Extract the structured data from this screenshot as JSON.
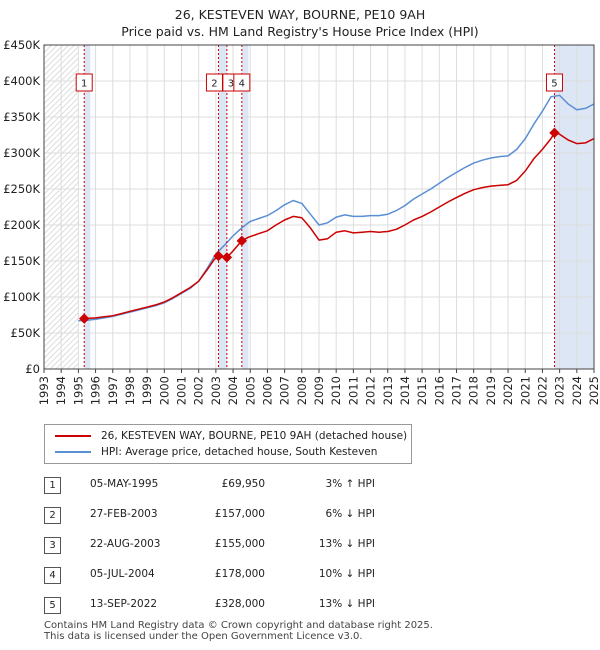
{
  "title": {
    "line1": "26, KESTEVEN WAY, BOURNE, PE10 9AH",
    "line2": "Price paid vs. HM Land Registry's House Price Index (HPI)"
  },
  "colors": {
    "red": "#cc0000",
    "blue": "#5b8fd4",
    "shade": "#dde6f4",
    "grid": "#dddddd"
  },
  "chart_data": {
    "type": "line",
    "title": "26, KESTEVEN WAY, BOURNE, PE10 9AH — Price paid vs. HM Land Registry's House Price Index (HPI)",
    "xlabel": "",
    "ylabel": "",
    "xlim": [
      1993,
      2025
    ],
    "ylim": [
      0,
      450000
    ],
    "yticks": [
      0,
      50000,
      100000,
      150000,
      200000,
      250000,
      300000,
      350000,
      400000,
      450000
    ],
    "ytick_labels": [
      "£0",
      "£50K",
      "£100K",
      "£150K",
      "£200K",
      "£250K",
      "£300K",
      "£350K",
      "£400K",
      "£450K"
    ],
    "xticks": [
      1993,
      1994,
      1995,
      1996,
      1997,
      1998,
      1999,
      2000,
      2001,
      2002,
      2003,
      2004,
      2005,
      2006,
      2007,
      2008,
      2009,
      2010,
      2011,
      2012,
      2013,
      2014,
      2015,
      2016,
      2017,
      2018,
      2019,
      2020,
      2021,
      2022,
      2023,
      2024,
      2025
    ],
    "hatched_ranges": [
      [
        1993,
        1995.0
      ],
      [
        2024.8,
        2025
      ]
    ],
    "shaded_ranges": [
      [
        1995.34,
        1995.7
      ],
      [
        2003.15,
        2003.64
      ],
      [
        2004.51,
        2004.9
      ],
      [
        2022.7,
        2025
      ]
    ],
    "series": [
      {
        "name": "26, KESTEVEN WAY, BOURNE, PE10 9AH (detached house)",
        "color": "#cc0000",
        "points": [
          [
            1995.34,
            69950
          ],
          [
            1995.6,
            70500
          ],
          [
            1996.0,
            71000
          ],
          [
            1996.5,
            72500
          ],
          [
            1997.0,
            74000
          ],
          [
            1997.5,
            77000
          ],
          [
            1998.0,
            80000
          ],
          [
            1998.5,
            83000
          ],
          [
            1999.0,
            86000
          ],
          [
            1999.5,
            89000
          ],
          [
            2000.0,
            93000
          ],
          [
            2000.5,
            99000
          ],
          [
            2001.0,
            106000
          ],
          [
            2001.5,
            113000
          ],
          [
            2002.0,
            122000
          ],
          [
            2002.5,
            138000
          ],
          [
            2002.9,
            152000
          ],
          [
            2003.15,
            157000
          ],
          [
            2003.4,
            156000
          ],
          [
            2003.64,
            155000
          ],
          [
            2004.0,
            164000
          ],
          [
            2004.51,
            178000
          ],
          [
            2004.9,
            183000
          ],
          [
            2005.5,
            188000
          ],
          [
            2006.0,
            192000
          ],
          [
            2006.5,
            200000
          ],
          [
            2007.0,
            207000
          ],
          [
            2007.5,
            212000
          ],
          [
            2008.0,
            210000
          ],
          [
            2008.5,
            196000
          ],
          [
            2009.0,
            179000
          ],
          [
            2009.5,
            181000
          ],
          [
            2010.0,
            190000
          ],
          [
            2010.5,
            192000
          ],
          [
            2011.0,
            189000
          ],
          [
            2011.5,
            190000
          ],
          [
            2012.0,
            191000
          ],
          [
            2012.5,
            190000
          ],
          [
            2013.0,
            191000
          ],
          [
            2013.5,
            194000
          ],
          [
            2014.0,
            200000
          ],
          [
            2014.5,
            207000
          ],
          [
            2015.0,
            212000
          ],
          [
            2015.5,
            218000
          ],
          [
            2016.0,
            225000
          ],
          [
            2016.5,
            232000
          ],
          [
            2017.0,
            238000
          ],
          [
            2017.5,
            244000
          ],
          [
            2018.0,
            249000
          ],
          [
            2018.5,
            252000
          ],
          [
            2019.0,
            254000
          ],
          [
            2019.5,
            255000
          ],
          [
            2020.0,
            256000
          ],
          [
            2020.5,
            262000
          ],
          [
            2021.0,
            275000
          ],
          [
            2021.5,
            292000
          ],
          [
            2022.0,
            305000
          ],
          [
            2022.5,
            320000
          ],
          [
            2022.7,
            328000
          ],
          [
            2023.0,
            326000
          ],
          [
            2023.5,
            318000
          ],
          [
            2024.0,
            313000
          ],
          [
            2024.5,
            314000
          ],
          [
            2025.0,
            320000
          ]
        ]
      },
      {
        "name": "HPI: Average price, detached house, South Kesteven",
        "color": "#5b8fd4",
        "points": [
          [
            1995.0,
            67000
          ],
          [
            1995.5,
            67800
          ],
          [
            1996.0,
            69000
          ],
          [
            1996.5,
            71000
          ],
          [
            1997.0,
            73000
          ],
          [
            1997.5,
            76000
          ],
          [
            1998.0,
            79000
          ],
          [
            1998.5,
            82000
          ],
          [
            1999.0,
            85000
          ],
          [
            1999.5,
            88000
          ],
          [
            2000.0,
            92000
          ],
          [
            2000.5,
            98000
          ],
          [
            2001.0,
            105000
          ],
          [
            2001.5,
            112000
          ],
          [
            2002.0,
            122000
          ],
          [
            2002.5,
            140000
          ],
          [
            2003.0,
            160000
          ],
          [
            2003.5,
            172000
          ],
          [
            2004.0,
            185000
          ],
          [
            2004.5,
            196000
          ],
          [
            2005.0,
            205000
          ],
          [
            2005.5,
            209000
          ],
          [
            2006.0,
            213000
          ],
          [
            2006.5,
            220000
          ],
          [
            2007.0,
            228000
          ],
          [
            2007.5,
            234000
          ],
          [
            2008.0,
            230000
          ],
          [
            2008.5,
            215000
          ],
          [
            2009.0,
            200000
          ],
          [
            2009.5,
            203000
          ],
          [
            2010.0,
            211000
          ],
          [
            2010.5,
            214000
          ],
          [
            2011.0,
            212000
          ],
          [
            2011.5,
            212000
          ],
          [
            2012.0,
            213000
          ],
          [
            2012.5,
            213000
          ],
          [
            2013.0,
            215000
          ],
          [
            2013.5,
            220000
          ],
          [
            2014.0,
            227000
          ],
          [
            2014.5,
            236000
          ],
          [
            2015.0,
            243000
          ],
          [
            2015.5,
            250000
          ],
          [
            2016.0,
            258000
          ],
          [
            2016.5,
            266000
          ],
          [
            2017.0,
            273000
          ],
          [
            2017.5,
            280000
          ],
          [
            2018.0,
            286000
          ],
          [
            2018.5,
            290000
          ],
          [
            2019.0,
            293000
          ],
          [
            2019.5,
            295000
          ],
          [
            2020.0,
            296000
          ],
          [
            2020.5,
            305000
          ],
          [
            2021.0,
            320000
          ],
          [
            2021.5,
            340000
          ],
          [
            2022.0,
            358000
          ],
          [
            2022.5,
            378000
          ],
          [
            2023.0,
            380000
          ],
          [
            2023.5,
            368000
          ],
          [
            2024.0,
            360000
          ],
          [
            2024.5,
            362000
          ],
          [
            2025.0,
            368000
          ]
        ]
      }
    ],
    "sales": [
      {
        "id": "1",
        "x": 1995.34,
        "y": 69950
      },
      {
        "id": "2",
        "x": 2003.15,
        "y": 157000
      },
      {
        "id": "3",
        "x": 2003.64,
        "y": 155000
      },
      {
        "id": "4",
        "x": 2004.51,
        "y": 178000
      },
      {
        "id": "5",
        "x": 2022.7,
        "y": 328000
      }
    ]
  },
  "legend": {
    "red_label": "26, KESTEVEN WAY, BOURNE, PE10 9AH (detached house)",
    "blue_label": "HPI: Average price, detached house, South Kesteven"
  },
  "table": {
    "rows": [
      {
        "num": "1",
        "date": "05-MAY-1995",
        "price": "£69,950",
        "hpi": "3% ↑ HPI"
      },
      {
        "num": "2",
        "date": "27-FEB-2003",
        "price": "£157,000",
        "hpi": "6% ↓ HPI"
      },
      {
        "num": "3",
        "date": "22-AUG-2003",
        "price": "£155,000",
        "hpi": "13% ↓ HPI"
      },
      {
        "num": "4",
        "date": "05-JUL-2004",
        "price": "£178,000",
        "hpi": "10% ↓ HPI"
      },
      {
        "num": "5",
        "date": "13-SEP-2022",
        "price": "£328,000",
        "hpi": "13% ↓ HPI"
      }
    ]
  },
  "footer": {
    "line1": "Contains HM Land Registry data © Crown copyright and database right 2025.",
    "line2": "This data is licensed under the Open Government Licence v3.0."
  }
}
